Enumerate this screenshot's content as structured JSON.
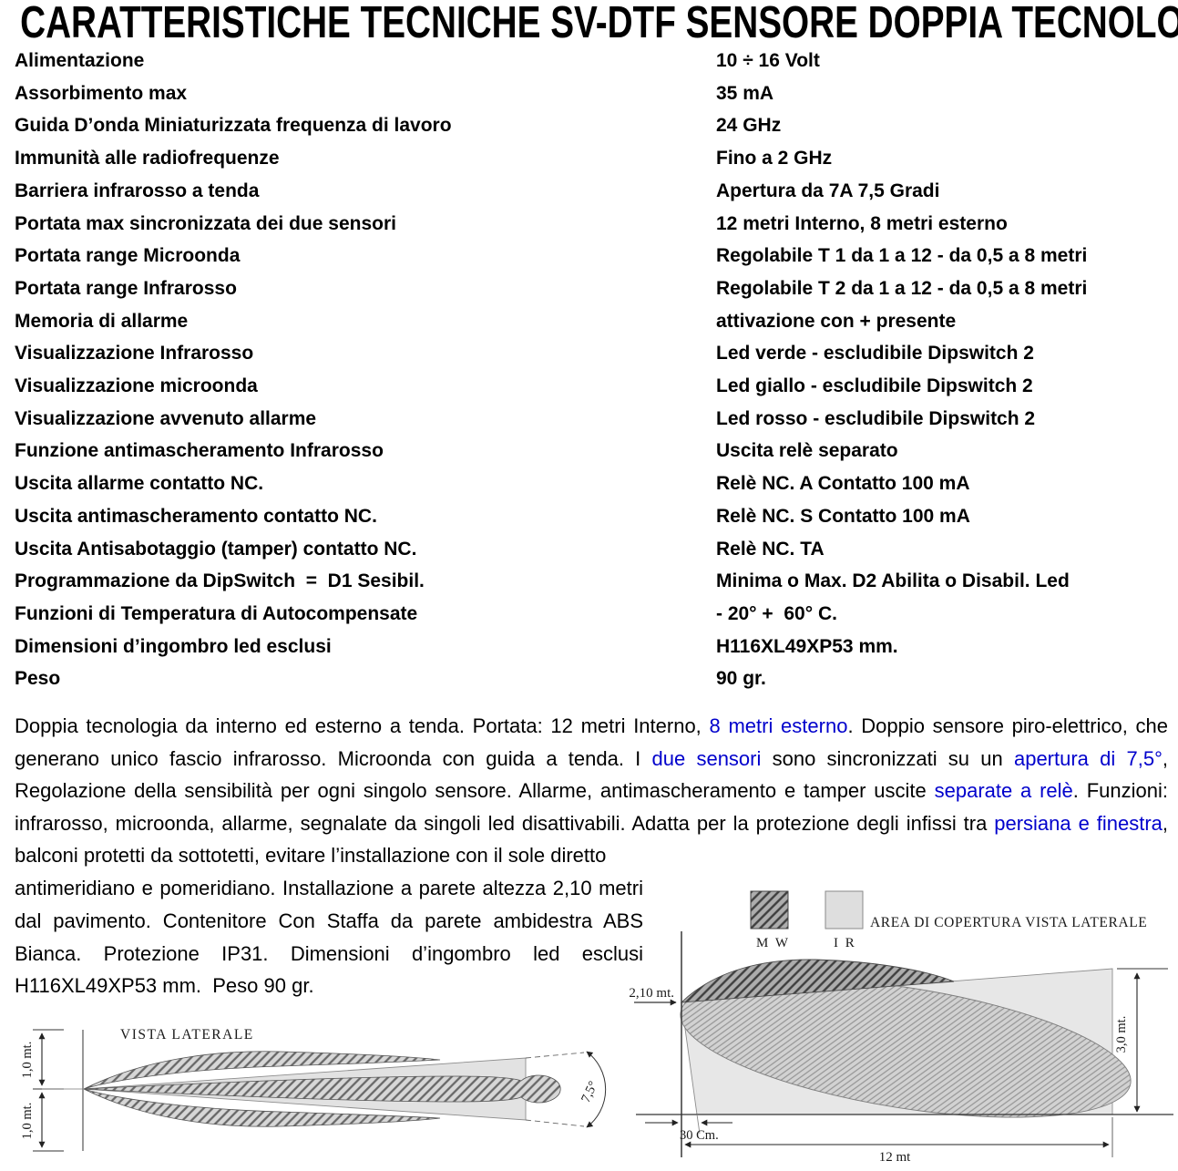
{
  "title": "CARATTERISTICHE TECNICHE SV-DTF SENSORE DOPPIA TECNOLOGIA",
  "colors": {
    "accent_blue": "#0000cc",
    "mw_hatch": "#ababab",
    "ir_gray": "#e7e7e7"
  },
  "specs": [
    {
      "label": "Alimentazione",
      "value": "10 ÷ 16 Volt"
    },
    {
      "label": "Assorbimento max",
      "value": "35 mA"
    },
    {
      "label": "Guida D’onda Miniaturizzata frequenza di lavoro",
      "value": "24 GHz"
    },
    {
      "label": "Immunità alle radiofrequenze",
      "value": "Fino a 2 GHz"
    },
    {
      "label": "Barriera infrarosso a tenda",
      "value": "Apertura da 7A 7,5 Gradi"
    },
    {
      "label": "Portata max sincronizzata dei due sensori",
      "value": "12 metri Interno, 8 metri esterno"
    },
    {
      "label": "Portata range Microonda",
      "value": "Regolabile T 1 da 1 a 12 - da 0,5 a 8 metri"
    },
    {
      "label": "Portata range Infrarosso",
      "value": "Regolabile T 2 da 1 a 12 - da 0,5 a 8 metri"
    },
    {
      "label": "Memoria di allarme",
      "value": "attivazione con + presente"
    },
    {
      "label": "Visualizzazione Infrarosso",
      "value": "Led verde - escludibile Dipswitch 2"
    },
    {
      "label": "Visualizzazione microonda",
      "value": "Led giallo - escludibile Dipswitch 2"
    },
    {
      "label": "Visualizzazione avvenuto allarme",
      "value": "Led rosso - escludibile Dipswitch 2"
    },
    {
      "label": "Funzione antimascheramento Infrarosso",
      "value": "Uscita relè separato"
    },
    {
      "label": "Uscita allarme contatto NC.",
      "value": "Relè NC. A Contatto 100 mA"
    },
    {
      "label": "Uscita antimascheramento contatto NC.",
      "value": "Relè NC. S Contatto 100 mA"
    },
    {
      "label": "Uscita Antisabotaggio (tamper) contatto NC.",
      "value": "Relè NC. TA"
    },
    {
      "label": "Programmazione da DipSwitch  =  D1 Sesibil.",
      "value": "Minima o Max. D2 Abilita o Disabil. Led"
    },
    {
      "label": "Funzioni di Temperatura di Autocompensate",
      "value": "- 20° +  60° C."
    },
    {
      "label": "Dimensioni d’ingombro led esclusi",
      "value": "H116XL49XP53 mm."
    },
    {
      "label": "Peso",
      "value": "90 gr."
    }
  ],
  "description": {
    "main_segments": [
      {
        "text": "Doppia tecnologia da interno ed esterno a tenda. Portata: 12 metri Interno, ",
        "blue": false
      },
      {
        "text": "8 metri esterno",
        "blue": true
      },
      {
        "text": ". Doppio sensore piro-elettrico, che generano unico fascio infrarosso. Microonda con guida a tenda. I ",
        "blue": false
      },
      {
        "text": "due sensori",
        "blue": true
      },
      {
        "text": " sono sincronizzati su un ",
        "blue": false
      },
      {
        "text": "apertura di 7,5°",
        "blue": true
      },
      {
        "text": ", Regolazione della sensibilità per ogni singolo sensore. Allarme, antimascheramento e tamper uscite ",
        "blue": false
      },
      {
        "text": "separate a relè",
        "blue": true
      },
      {
        "text": ". Funzioni: infrarosso, microonda, allarme, segnalate da singoli led disattivabili. Adatta per la protezione degli infissi tra ",
        "blue": false
      },
      {
        "text": "persiana e finestra",
        "blue": true
      },
      {
        "text": ", balconi protetti da sottotetti, evitare l’installazione con il sole diretto",
        "blue": false
      }
    ],
    "continuation_segments": [
      {
        "text": "antimeridiano e pomeridiano. Installazione a parete altezza 2,10 metri dal pavimento. Contenitore Con Staffa da parete ambidestra ABS Bianca. Protezione IP31. Dimensioni d’ingombro led esclusi H116XL49XP53 mm.  Peso 90 gr.",
        "blue": false
      }
    ]
  },
  "diagram_left": {
    "title": "VISTA LATERALE",
    "dim_upper": "1,0 mt.",
    "dim_lower": "1,0 mt.",
    "angle": "7,5°"
  },
  "diagram_right": {
    "legend_mw": "M W",
    "legend_ir": "I R",
    "legend_title": "AREA DI COPERTURA VISTA LATERALE",
    "mount_height": "2,10 mt.",
    "height_right": "3,0 mt.",
    "floor_offset": "30 Cm.",
    "range": "12 mt"
  }
}
